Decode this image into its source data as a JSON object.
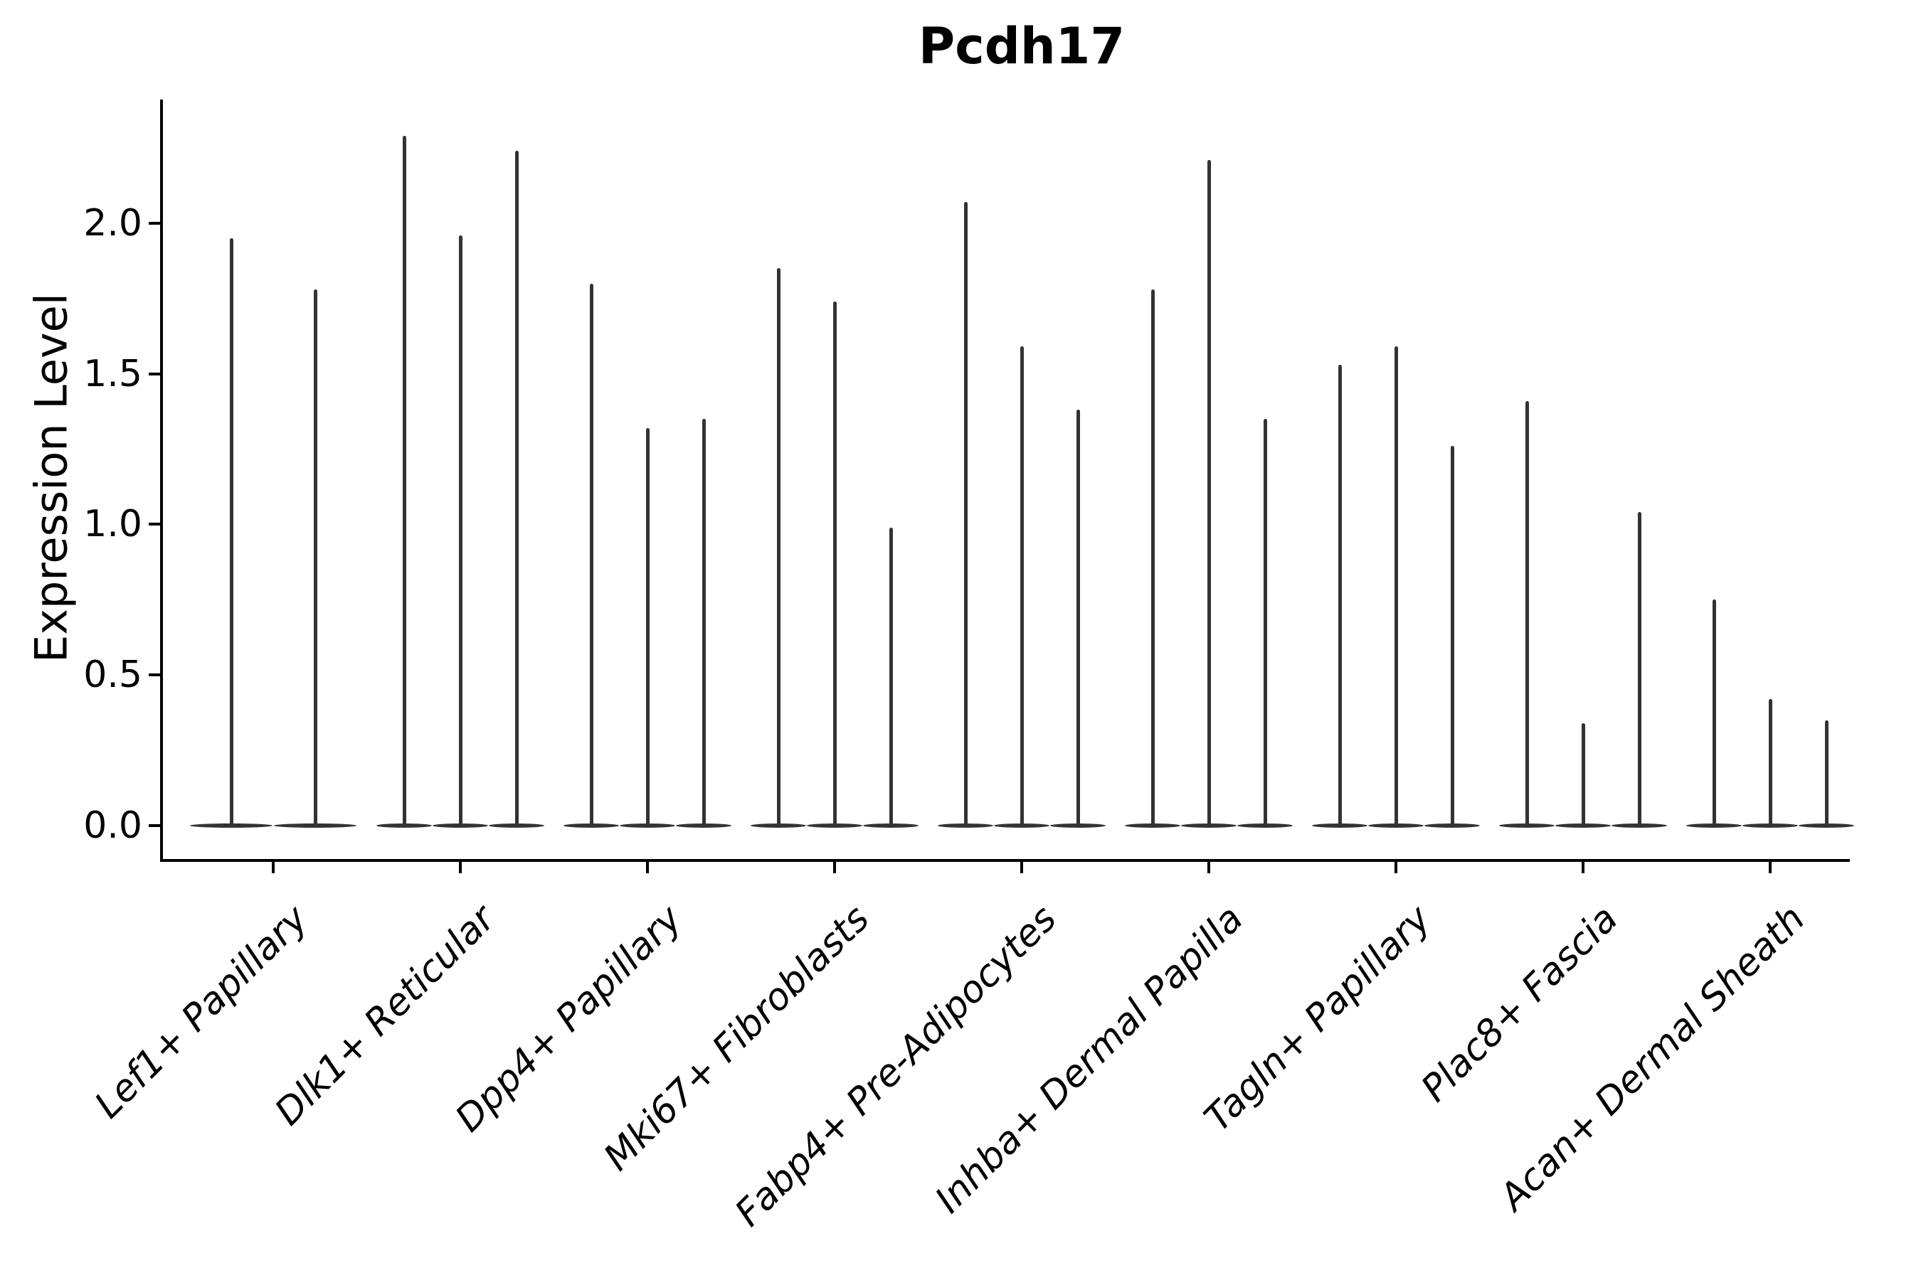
{
  "chart_data": {
    "type": "violin",
    "title": "Pcdh17",
    "ylabel": "Expression Level",
    "xlabel": "",
    "grid": false,
    "legend": "none",
    "ylim": [
      -0.12,
      2.41
    ],
    "yticks": [
      {
        "label": "0.0",
        "value": 0.0
      },
      {
        "label": "0.5",
        "value": 0.5
      },
      {
        "label": "1.0",
        "value": 1.0
      },
      {
        "label": "1.5",
        "value": 1.5
      },
      {
        "label": "2.0",
        "value": 2.0
      }
    ],
    "categories": [
      "Lef1+ Papillary",
      "Dlk1+ Reticular",
      "Dpp4+ Papillary",
      "Mki67+ Fibroblasts",
      "Fabp4+ Pre-Adipocytes",
      "Inhba+ Dermal Papilla",
      "Tagln+ Papillary",
      "Plac8+ Fascia",
      "Acan+ Dermal Sheath"
    ],
    "series": [
      {
        "category": "Lef1+ Papillary",
        "baseline_value": 0,
        "violin_maxima": [
          1.95,
          1.78
        ]
      },
      {
        "category": "Dlk1+ Reticular",
        "baseline_value": 0,
        "violin_maxima": [
          2.29,
          1.96,
          2.24
        ]
      },
      {
        "category": "Dpp4+ Papillary",
        "baseline_value": 0,
        "violin_maxima": [
          1.8,
          1.32,
          1.35
        ]
      },
      {
        "category": "Mki67+ Fibroblasts",
        "baseline_value": 0,
        "violin_maxima": [
          1.85,
          1.74,
          0.99
        ]
      },
      {
        "category": "Fabp4+ Pre-Adipocytes",
        "baseline_value": 0,
        "violin_maxima": [
          2.07,
          1.59,
          1.38
        ]
      },
      {
        "category": "Inhba+ Dermal Papilla",
        "baseline_value": 0,
        "violin_maxima": [
          1.78,
          2.21,
          1.35
        ]
      },
      {
        "category": "Tagln+ Papillary",
        "baseline_value": 0,
        "violin_maxima": [
          1.53,
          1.59,
          1.26
        ]
      },
      {
        "category": "Plac8+ Fascia",
        "baseline_value": 0,
        "violin_maxima": [
          1.41,
          0.34,
          1.04
        ]
      },
      {
        "category": "Acan+ Dermal Sheath",
        "baseline_value": 0,
        "violin_maxima": [
          0.75,
          0.42,
          0.35
        ]
      }
    ]
  },
  "colors": {
    "violin": "#333333",
    "axis": "#000000",
    "text": "#000000",
    "background": "#ffffff"
  }
}
